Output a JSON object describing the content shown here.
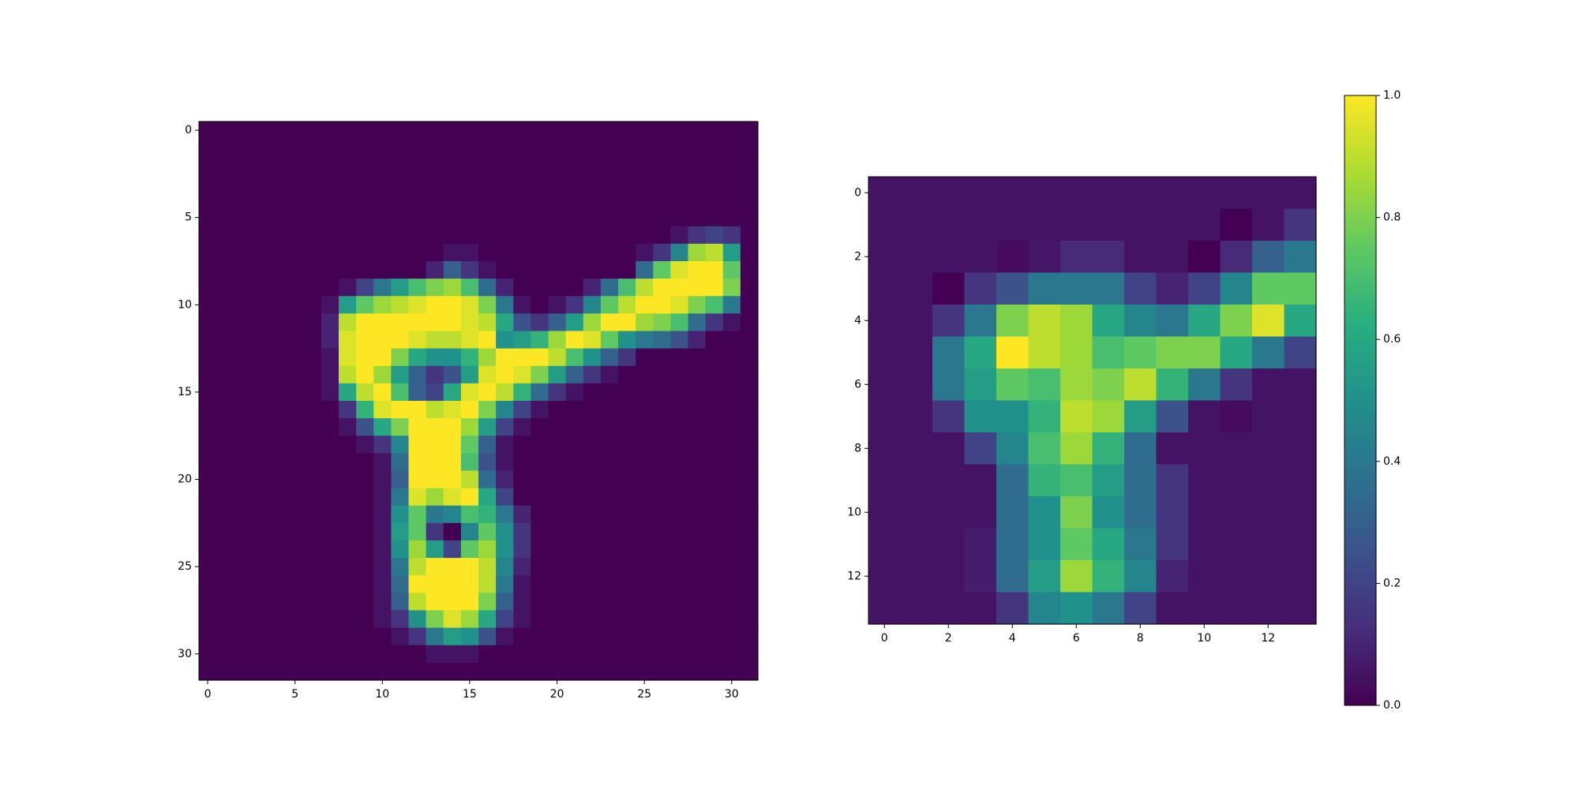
{
  "chart_data": [
    {
      "type": "heatmap",
      "title": "",
      "xlabel": "",
      "ylabel": "",
      "rows": 32,
      "cols": 32,
      "xlim": [
        -0.5,
        31.5
      ],
      "ylim": [
        31.5,
        -0.5
      ],
      "xticks": [
        0,
        5,
        10,
        15,
        20,
        25,
        30
      ],
      "yticks": [
        0,
        5,
        10,
        15,
        20,
        25,
        30
      ],
      "colormap": "viridis",
      "vmin": 0,
      "vmax": 1,
      "grid": false,
      "values": [
        [
          0,
          0,
          0,
          0,
          0,
          0,
          0,
          0,
          0,
          0,
          0,
          0,
          0,
          0,
          0,
          0,
          0,
          0,
          0,
          0,
          0,
          0,
          0,
          0,
          0,
          0,
          0,
          0,
          0,
          0,
          0,
          0
        ],
        [
          0,
          0,
          0,
          0,
          0,
          0,
          0,
          0,
          0,
          0,
          0,
          0,
          0,
          0,
          0,
          0,
          0,
          0,
          0,
          0,
          0,
          0,
          0,
          0,
          0,
          0,
          0,
          0,
          0,
          0,
          0,
          0
        ],
        [
          0,
          0,
          0,
          0,
          0,
          0,
          0,
          0,
          0,
          0,
          0,
          0,
          0,
          0,
          0,
          0,
          0,
          0,
          0,
          0,
          0,
          0,
          0,
          0,
          0,
          0,
          0,
          0,
          0,
          0,
          0,
          0
        ],
        [
          0,
          0,
          0,
          0,
          0,
          0,
          0,
          0,
          0,
          0,
          0,
          0,
          0,
          0,
          0,
          0,
          0,
          0,
          0,
          0,
          0,
          0,
          0,
          0,
          0,
          0,
          0,
          0,
          0,
          0,
          0,
          0
        ],
        [
          0,
          0,
          0,
          0,
          0,
          0,
          0,
          0,
          0,
          0,
          0,
          0,
          0,
          0,
          0,
          0,
          0,
          0,
          0,
          0,
          0,
          0,
          0,
          0,
          0,
          0,
          0,
          0,
          0,
          0,
          0,
          0
        ],
        [
          0,
          0,
          0,
          0,
          0,
          0,
          0,
          0,
          0,
          0,
          0,
          0,
          0,
          0,
          0,
          0,
          0,
          0,
          0,
          0,
          0,
          0,
          0,
          0,
          0,
          0,
          0,
          0,
          0,
          0,
          0,
          0
        ],
        [
          0,
          0,
          0,
          0,
          0,
          0,
          0,
          0,
          0,
          0,
          0,
          0,
          0,
          0,
          0,
          0,
          0,
          0,
          0,
          0,
          0,
          0,
          0,
          0,
          0,
          0,
          0,
          0.05,
          0.15,
          0.2,
          0.15,
          0
        ],
        [
          0,
          0,
          0,
          0,
          0,
          0,
          0,
          0,
          0,
          0,
          0,
          0,
          0,
          0,
          0.05,
          0.05,
          0,
          0,
          0,
          0,
          0,
          0,
          0,
          0,
          0,
          0.05,
          0.15,
          0.45,
          0.85,
          0.9,
          0.55,
          0
        ],
        [
          0,
          0,
          0,
          0,
          0,
          0,
          0,
          0,
          0,
          0,
          0,
          0,
          0,
          0.1,
          0.3,
          0.15,
          0.05,
          0,
          0,
          0,
          0,
          0,
          0,
          0,
          0,
          0.35,
          0.75,
          0.95,
          1,
          1,
          0.75,
          0
        ],
        [
          0,
          0,
          0,
          0,
          0,
          0,
          0,
          0,
          0.05,
          0.2,
          0.4,
          0.55,
          0.7,
          0.8,
          0.85,
          0.7,
          0.35,
          0.1,
          0,
          0,
          0,
          0,
          0.1,
          0.35,
          0.7,
          0.9,
          1,
          1,
          1,
          1,
          0.8,
          0
        ],
        [
          0,
          0,
          0,
          0,
          0,
          0,
          0,
          0.05,
          0.55,
          0.75,
          0.85,
          0.9,
          0.95,
          1,
          1,
          0.95,
          0.8,
          0.4,
          0.05,
          0,
          0.05,
          0.15,
          0.45,
          0.75,
          0.9,
          1,
          1,
          0.95,
          0.8,
          0.7,
          0.4,
          0
        ],
        [
          0,
          0,
          0,
          0,
          0,
          0,
          0,
          0.1,
          0.9,
          1,
          1,
          1,
          1,
          1,
          1,
          0.95,
          0.9,
          0.6,
          0.25,
          0.15,
          0.3,
          0.55,
          0.85,
          1,
          1,
          0.85,
          0.8,
          0.7,
          0.35,
          0.15,
          0.05,
          0
        ],
        [
          0,
          0,
          0,
          0,
          0,
          0,
          0,
          0.1,
          0.95,
          1,
          1,
          1,
          0.95,
          0.9,
          0.9,
          0.95,
          1,
          0.5,
          0.55,
          0.65,
          0.85,
          1,
          0.95,
          0.75,
          0.5,
          0.4,
          0.35,
          0.25,
          0.1,
          0,
          0,
          0
        ],
        [
          0,
          0,
          0,
          0,
          0,
          0,
          0,
          0.05,
          0.95,
          1,
          1,
          0.8,
          0.6,
          0.5,
          0.5,
          0.65,
          0.85,
          1,
          1,
          1,
          0.9,
          0.7,
          0.5,
          0.3,
          0.15,
          0,
          0,
          0,
          0,
          0,
          0,
          0
        ],
        [
          0,
          0,
          0,
          0,
          0,
          0,
          0,
          0.05,
          0.9,
          1,
          0.85,
          0.55,
          0.3,
          0.15,
          0.25,
          0.55,
          0.95,
          1,
          0.95,
          0.8,
          0.55,
          0.3,
          0.15,
          0.05,
          0,
          0,
          0,
          0,
          0,
          0,
          0,
          0
        ],
        [
          0,
          0,
          0,
          0,
          0,
          0,
          0,
          0.05,
          0.6,
          0.9,
          1,
          0.7,
          0.3,
          0.2,
          0.6,
          0.95,
          1,
          0.9,
          0.65,
          0.35,
          0.15,
          0.05,
          0,
          0,
          0,
          0,
          0,
          0,
          0,
          0,
          0,
          0
        ],
        [
          0,
          0,
          0,
          0,
          0,
          0,
          0,
          0,
          0.15,
          0.65,
          0.95,
          1,
          1,
          0.9,
          0.95,
          1,
          0.8,
          0.45,
          0.2,
          0.05,
          0,
          0,
          0,
          0,
          0,
          0,
          0,
          0,
          0,
          0,
          0,
          0
        ],
        [
          0,
          0,
          0,
          0,
          0,
          0,
          0,
          0,
          0.05,
          0.25,
          0.6,
          0.8,
          1,
          1,
          1,
          0.85,
          0.55,
          0.2,
          0.05,
          0,
          0,
          0,
          0,
          0,
          0,
          0,
          0,
          0,
          0,
          0,
          0,
          0
        ],
        [
          0,
          0,
          0,
          0,
          0,
          0,
          0,
          0,
          0,
          0.05,
          0.15,
          0.45,
          1,
          1,
          1,
          0.75,
          0.3,
          0.05,
          0,
          0,
          0,
          0,
          0,
          0,
          0,
          0,
          0,
          0,
          0,
          0,
          0,
          0
        ],
        [
          0,
          0,
          0,
          0,
          0,
          0,
          0,
          0,
          0,
          0,
          0.05,
          0.35,
          1,
          1,
          1,
          0.7,
          0.25,
          0.05,
          0,
          0,
          0,
          0,
          0,
          0,
          0,
          0,
          0,
          0,
          0,
          0,
          0,
          0
        ],
        [
          0,
          0,
          0,
          0,
          0,
          0,
          0,
          0,
          0,
          0,
          0.05,
          0.3,
          1,
          1,
          1,
          0.9,
          0.35,
          0.1,
          0,
          0,
          0,
          0,
          0,
          0,
          0,
          0,
          0,
          0,
          0,
          0,
          0,
          0
        ],
        [
          0,
          0,
          0,
          0,
          0,
          0,
          0,
          0,
          0,
          0,
          0.05,
          0.4,
          0.95,
          0.85,
          0.95,
          1,
          0.6,
          0.2,
          0,
          0,
          0,
          0,
          0,
          0,
          0,
          0,
          0,
          0,
          0,
          0,
          0,
          0
        ],
        [
          0,
          0,
          0,
          0,
          0,
          0,
          0,
          0,
          0,
          0,
          0.05,
          0.5,
          0.75,
          0.4,
          0.45,
          0.7,
          0.65,
          0.4,
          0.1,
          0,
          0,
          0,
          0,
          0,
          0,
          0,
          0,
          0,
          0,
          0,
          0,
          0
        ],
        [
          0,
          0,
          0,
          0,
          0,
          0,
          0,
          0,
          0,
          0,
          0.05,
          0.55,
          0.75,
          0.15,
          0,
          0.45,
          0.75,
          0.5,
          0.15,
          0,
          0,
          0,
          0,
          0,
          0,
          0,
          0,
          0,
          0,
          0,
          0,
          0
        ],
        [
          0,
          0,
          0,
          0,
          0,
          0,
          0,
          0,
          0,
          0,
          0.05,
          0.5,
          0.85,
          0.55,
          0.2,
          0.75,
          0.85,
          0.5,
          0.15,
          0,
          0,
          0,
          0,
          0,
          0,
          0,
          0,
          0,
          0,
          0,
          0,
          0
        ],
        [
          0,
          0,
          0,
          0,
          0,
          0,
          0,
          0,
          0,
          0,
          0.05,
          0.4,
          0.9,
          1,
          1,
          1,
          0.9,
          0.45,
          0.1,
          0,
          0,
          0,
          0,
          0,
          0,
          0,
          0,
          0,
          0,
          0,
          0,
          0
        ],
        [
          0,
          0,
          0,
          0,
          0,
          0,
          0,
          0,
          0,
          0,
          0.05,
          0.35,
          1,
          1,
          1,
          1,
          0.9,
          0.4,
          0.05,
          0,
          0,
          0,
          0,
          0,
          0,
          0,
          0,
          0,
          0,
          0,
          0,
          0
        ],
        [
          0,
          0,
          0,
          0,
          0,
          0,
          0,
          0,
          0,
          0,
          0.05,
          0.3,
          0.9,
          1,
          1,
          1,
          0.8,
          0.3,
          0.05,
          0,
          0,
          0,
          0,
          0,
          0,
          0,
          0,
          0,
          0,
          0,
          0,
          0
        ],
        [
          0,
          0,
          0,
          0,
          0,
          0,
          0,
          0,
          0,
          0,
          0.05,
          0.15,
          0.5,
          0.8,
          0.95,
          0.85,
          0.6,
          0.2,
          0.05,
          0,
          0,
          0,
          0,
          0,
          0,
          0,
          0,
          0,
          0,
          0,
          0,
          0
        ],
        [
          0,
          0,
          0,
          0,
          0,
          0,
          0,
          0,
          0,
          0,
          0,
          0.05,
          0.15,
          0.4,
          0.55,
          0.5,
          0.25,
          0.05,
          0,
          0,
          0,
          0,
          0,
          0,
          0,
          0,
          0,
          0,
          0,
          0,
          0,
          0
        ],
        [
          0,
          0,
          0,
          0,
          0,
          0,
          0,
          0,
          0,
          0,
          0,
          0,
          0,
          0.05,
          0.05,
          0.05,
          0,
          0,
          0,
          0,
          0,
          0,
          0,
          0,
          0,
          0,
          0,
          0,
          0,
          0,
          0,
          0
        ],
        [
          0,
          0,
          0,
          0,
          0,
          0,
          0,
          0,
          0,
          0,
          0,
          0,
          0,
          0,
          0,
          0,
          0,
          0,
          0,
          0,
          0,
          0,
          0,
          0,
          0,
          0,
          0,
          0,
          0,
          0,
          0,
          0
        ]
      ]
    },
    {
      "type": "heatmap",
      "title": "",
      "xlabel": "",
      "ylabel": "",
      "rows": 14,
      "cols": 14,
      "xlim": [
        -0.5,
        13.5
      ],
      "ylim": [
        13.5,
        -0.5
      ],
      "xticks": [
        0,
        2,
        4,
        6,
        8,
        10,
        12
      ],
      "yticks": [
        0,
        2,
        4,
        6,
        8,
        10,
        12
      ],
      "colormap": "viridis",
      "vmin": 0,
      "vmax": 1,
      "grid": false,
      "values": [
        [
          0.05,
          0.05,
          0.05,
          0.05,
          0.05,
          0.05,
          0.05,
          0.05,
          0.05,
          0.05,
          0.05,
          0.05,
          0.05,
          0.05
        ],
        [
          0.05,
          0.05,
          0.05,
          0.05,
          0.05,
          0.05,
          0.05,
          0.05,
          0.05,
          0.05,
          0.05,
          0,
          0.05,
          0.15
        ],
        [
          0.05,
          0.05,
          0.05,
          0.05,
          0.03,
          0.06,
          0.12,
          0.12,
          0.05,
          0.05,
          0,
          0.12,
          0.3,
          0.4
        ],
        [
          0.05,
          0.05,
          0,
          0.15,
          0.25,
          0.4,
          0.4,
          0.4,
          0.2,
          0.1,
          0.2,
          0.45,
          0.75,
          0.75
        ],
        [
          0.05,
          0.05,
          0.15,
          0.4,
          0.8,
          0.9,
          0.85,
          0.6,
          0.45,
          0.4,
          0.6,
          0.8,
          0.95,
          0.6
        ],
        [
          0.05,
          0.05,
          0.4,
          0.6,
          1,
          0.9,
          0.85,
          0.7,
          0.75,
          0.8,
          0.8,
          0.6,
          0.4,
          0.2
        ],
        [
          0.05,
          0.05,
          0.4,
          0.55,
          0.75,
          0.7,
          0.85,
          0.8,
          0.9,
          0.65,
          0.4,
          0.15,
          0.05,
          0.05
        ],
        [
          0.05,
          0.05,
          0.15,
          0.5,
          0.5,
          0.65,
          0.9,
          0.85,
          0.55,
          0.25,
          0.05,
          0.03,
          0.05,
          0.05
        ],
        [
          0.05,
          0.05,
          0.05,
          0.2,
          0.45,
          0.7,
          0.85,
          0.65,
          0.35,
          0.05,
          0.05,
          0.05,
          0.05,
          0.05
        ],
        [
          0.05,
          0.05,
          0.05,
          0.05,
          0.35,
          0.65,
          0.7,
          0.55,
          0.35,
          0.15,
          0.05,
          0.05,
          0.05,
          0.05
        ],
        [
          0.05,
          0.05,
          0.05,
          0.05,
          0.35,
          0.5,
          0.8,
          0.5,
          0.35,
          0.15,
          0.05,
          0.05,
          0.05,
          0.05
        ],
        [
          0.05,
          0.05,
          0.05,
          0.08,
          0.35,
          0.5,
          0.75,
          0.6,
          0.4,
          0.15,
          0.05,
          0.05,
          0.05,
          0.05
        ],
        [
          0.05,
          0.05,
          0.05,
          0.08,
          0.35,
          0.55,
          0.85,
          0.65,
          0.45,
          0.1,
          0.05,
          0.05,
          0.05,
          0.05
        ],
        [
          0.05,
          0.05,
          0.05,
          0.05,
          0.15,
          0.45,
          0.5,
          0.4,
          0.2,
          0.05,
          0.05,
          0.05,
          0.05,
          0.05
        ]
      ]
    },
    {
      "type": "colorbar",
      "colormap": "viridis",
      "vmin": 0,
      "vmax": 1,
      "ticks": [
        "0.0",
        "0.2",
        "0.4",
        "0.6",
        "0.8",
        "1.0"
      ]
    }
  ]
}
